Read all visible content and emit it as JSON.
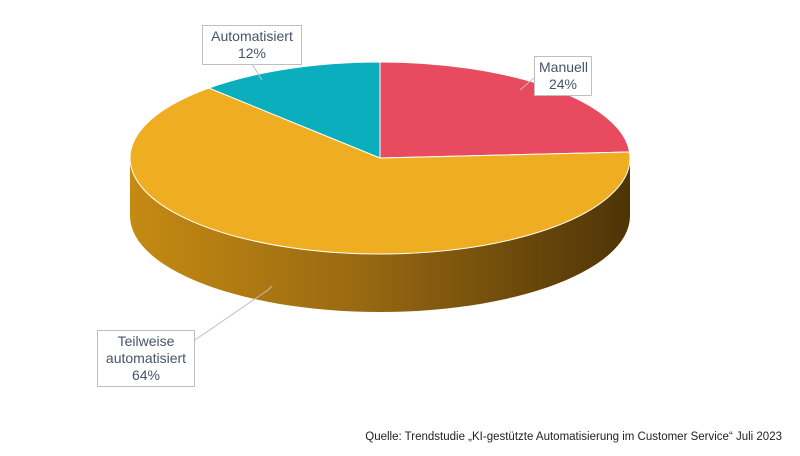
{
  "chart_data": {
    "type": "pie",
    "slices": [
      {
        "label": "Manuell",
        "value": 24,
        "value_label": "24%",
        "color": "#e84a5f"
      },
      {
        "label": "Teilweise automatisiert",
        "value": 64,
        "value_label": "64%",
        "color": "#efae22"
      },
      {
        "label": "Automatisiert",
        "value": 12,
        "value_label": "12%",
        "color": "#0baebc"
      }
    ],
    "start": "12 o'clock",
    "direction": "clockwise",
    "style": "3d",
    "legend": "none"
  },
  "labels": {
    "automatisiert": {
      "line1": "Automatisiert",
      "line2": "12%"
    },
    "manuell": {
      "line1": "Manuell",
      "line2": "24%"
    },
    "teilweise": {
      "line1": "Teilweise",
      "line2": "automatisiert",
      "line3": "64%"
    }
  },
  "source": "Quelle: Trendstudie „KI-gestützte Automatisierung im Customer Service“ Juli 2023"
}
